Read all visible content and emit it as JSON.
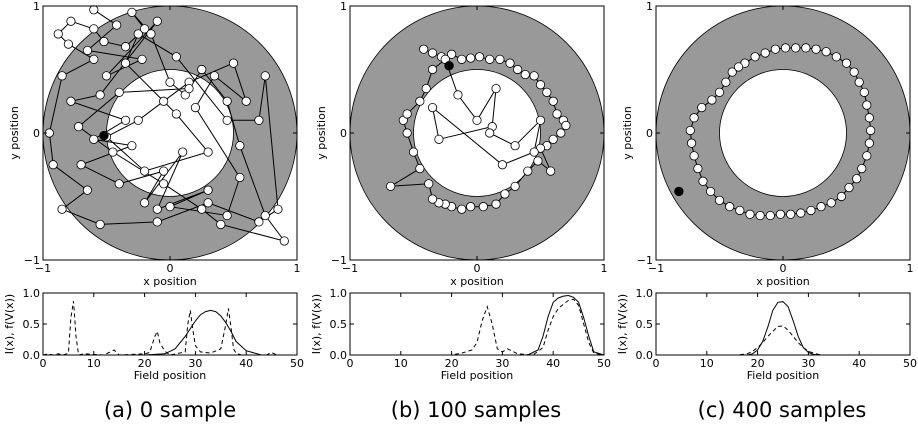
{
  "chart_data": [
    {
      "type": "scatter",
      "xlabel": "x position",
      "ylabel": "y position",
      "xlim": [
        -1,
        1
      ],
      "ylim": [
        -1,
        1
      ],
      "xticks": [
        "−1",
        "0",
        "1"
      ],
      "yticks": [
        "−1",
        "0",
        "1"
      ],
      "annulus": {
        "outer_radius": 1.0,
        "inner_radius": 0.5,
        "color": "#999999"
      },
      "path": [
        [
          -0.6,
          0.97
        ],
        [
          -0.42,
          0.85
        ],
        [
          -0.65,
          0.65
        ],
        [
          -0.22,
          0.58
        ],
        [
          -0.5,
          0.45
        ],
        [
          -0.1,
          0.88
        ],
        [
          -0.55,
          0.3
        ],
        [
          -0.78,
          0.25
        ],
        [
          -0.35,
          0.1
        ],
        [
          -0.6,
          -0.05
        ],
        [
          -0.3,
          -0.1
        ],
        [
          -0.7,
          -0.25
        ],
        [
          -0.4,
          -0.4
        ],
        [
          -0.05,
          -0.3
        ],
        [
          -0.2,
          -0.55
        ],
        [
          0.1,
          -0.15
        ],
        [
          -0.1,
          -0.6
        ],
        [
          0.3,
          -0.45
        ],
        [
          0.0,
          -0.58
        ],
        [
          0.45,
          -0.65
        ],
        [
          0.55,
          -0.35
        ],
        [
          0.2,
          0.2
        ],
        [
          0.35,
          0.45
        ],
        [
          0.6,
          0.25
        ],
        [
          0.5,
          0.55
        ],
        [
          0.15,
          0.4
        ],
        [
          -0.05,
          0.25
        ],
        [
          -0.25,
          0.1
        ],
        [
          -0.5,
          -0.03
        ],
        [
          -0.2,
          -0.3
        ],
        [
          0.3,
          -0.15
        ],
        [
          0.05,
          0.15
        ],
        [
          -0.35,
          0.55
        ],
        [
          -0.25,
          0.78
        ],
        [
          0.05,
          0.6
        ],
        [
          0.45,
          0.1
        ],
        [
          0.7,
          0.1
        ],
        [
          0.75,
          0.45
        ],
        [
          0.85,
          -0.6
        ],
        [
          0.7,
          -0.7
        ],
        [
          0.3,
          -0.55
        ],
        [
          -0.1,
          -0.7
        ],
        [
          -0.55,
          -0.72
        ],
        [
          -0.85,
          -0.6
        ],
        [
          -0.65,
          -0.45
        ],
        [
          -0.92,
          -0.25
        ],
        [
          -0.95,
          0.0
        ],
        [
          -0.85,
          0.45
        ],
        [
          -0.6,
          0.58
        ],
        [
          -0.8,
          0.7
        ],
        [
          -0.88,
          0.78
        ],
        [
          -0.78,
          0.88
        ],
        [
          -0.6,
          0.82
        ],
        [
          -0.52,
          0.72
        ],
        [
          -0.35,
          0.68
        ],
        [
          -0.2,
          0.82
        ],
        [
          -0.3,
          0.95
        ],
        [
          -0.15,
          0.78
        ],
        [
          0.0,
          0.4
        ],
        [
          0.12,
          0.3
        ],
        [
          0.25,
          0.5
        ],
        [
          0.45,
          0.25
        ],
        [
          0.55,
          -0.1
        ],
        [
          0.75,
          -0.65
        ],
        [
          0.9,
          -0.85
        ],
        [
          0.4,
          -0.72
        ],
        [
          0.25,
          -0.6
        ],
        [
          -0.05,
          -0.4
        ],
        [
          -0.45,
          -0.15
        ],
        [
          -0.72,
          0.05
        ],
        [
          -0.4,
          0.32
        ],
        [
          0.15,
          0.35
        ]
      ],
      "highlight": [
        -0.52,
        -0.02
      ]
    },
    {
      "type": "scatter",
      "xlabel": "x position",
      "ylabel": "y position",
      "xlim": [
        -1,
        1
      ],
      "ylim": [
        -1,
        1
      ],
      "xticks": [
        "−1",
        "0",
        "1"
      ],
      "yticks": [
        "−1",
        "0",
        "1"
      ],
      "annulus": {
        "outer_radius": 1.0,
        "inner_radius": 0.5,
        "color": "#999999"
      },
      "path": [
        [
          -0.42,
          0.66
        ],
        [
          -0.35,
          0.63
        ],
        [
          -0.28,
          0.6
        ],
        [
          -0.2,
          0.62
        ],
        [
          -0.12,
          0.58
        ],
        [
          -0.05,
          0.59
        ],
        [
          0.02,
          0.6
        ],
        [
          0.1,
          0.58
        ],
        [
          0.18,
          0.58
        ],
        [
          0.26,
          0.55
        ],
        [
          0.32,
          0.5
        ],
        [
          0.38,
          0.46
        ],
        [
          0.45,
          0.45
        ],
        [
          0.5,
          0.38
        ],
        [
          0.55,
          0.32
        ],
        [
          0.6,
          0.25
        ],
        [
          0.63,
          0.15
        ],
        [
          0.68,
          0.1
        ],
        [
          0.7,
          0.06
        ],
        [
          0.66,
          0.0
        ],
        [
          0.6,
          -0.05
        ],
        [
          0.55,
          -0.1
        ],
        [
          0.5,
          -0.12
        ],
        [
          0.58,
          -0.3
        ],
        [
          0.48,
          -0.22
        ],
        [
          0.4,
          -0.3
        ],
        [
          0.3,
          -0.42
        ],
        [
          0.22,
          -0.48
        ],
        [
          0.15,
          -0.56
        ],
        [
          0.05,
          -0.58
        ],
        [
          -0.05,
          -0.58
        ],
        [
          -0.12,
          -0.6
        ],
        [
          -0.2,
          -0.58
        ],
        [
          -0.25,
          -0.56
        ],
        [
          -0.3,
          -0.55
        ],
        [
          -0.35,
          -0.52
        ],
        [
          -0.38,
          -0.4
        ],
        [
          -0.68,
          -0.42
        ],
        [
          -0.45,
          -0.28
        ],
        [
          -0.5,
          -0.15
        ],
        [
          -0.55,
          0.0
        ],
        [
          -0.58,
          0.1
        ],
        [
          -0.55,
          0.15
        ],
        [
          -0.45,
          0.25
        ],
        [
          -0.4,
          0.35
        ],
        [
          -0.35,
          0.5
        ],
        [
          -0.25,
          0.58
        ],
        [
          -0.15,
          0.3
        ],
        [
          0.0,
          0.1
        ],
        [
          0.15,
          0.35
        ],
        [
          0.12,
          0.05
        ],
        [
          -0.3,
          -0.05
        ],
        [
          -0.35,
          0.2
        ],
        [
          0.2,
          -0.25
        ],
        [
          0.45,
          -0.15
        ],
        [
          0.5,
          0.1
        ],
        [
          0.3,
          -0.1
        ],
        [
          0.1,
          0.0
        ]
      ],
      "highlight": [
        -0.22,
        0.53
      ]
    },
    {
      "type": "scatter",
      "xlabel": "x position",
      "ylabel": "y position",
      "xlim": [
        -1,
        1
      ],
      "ylim": [
        -1,
        1
      ],
      "xticks": [
        "−1",
        "0",
        "1"
      ],
      "yticks": [
        "−1",
        "0",
        "1"
      ],
      "annulus": {
        "outer_radius": 1.0,
        "inner_radius": 0.5,
        "color": "#999999"
      },
      "path": [
        [
          -0.3,
          0.55
        ],
        [
          -0.22,
          0.6
        ],
        [
          -0.14,
          0.63
        ],
        [
          -0.06,
          0.66
        ],
        [
          0.02,
          0.67
        ],
        [
          0.1,
          0.67
        ],
        [
          0.18,
          0.67
        ],
        [
          0.26,
          0.66
        ],
        [
          0.34,
          0.64
        ],
        [
          0.42,
          0.6
        ],
        [
          0.5,
          0.55
        ],
        [
          0.56,
          0.48
        ],
        [
          0.6,
          0.4
        ],
        [
          0.64,
          0.32
        ],
        [
          0.66,
          0.22
        ],
        [
          0.68,
          0.12
        ],
        [
          0.69,
          0.02
        ],
        [
          0.68,
          -0.08
        ],
        [
          0.66,
          -0.18
        ],
        [
          0.62,
          -0.28
        ],
        [
          0.58,
          -0.36
        ],
        [
          0.52,
          -0.43
        ],
        [
          0.46,
          -0.5
        ],
        [
          0.38,
          -0.55
        ],
        [
          0.3,
          -0.58
        ],
        [
          0.22,
          -0.61
        ],
        [
          0.14,
          -0.63
        ],
        [
          0.06,
          -0.64
        ],
        [
          -0.02,
          -0.64
        ],
        [
          -0.1,
          -0.65
        ],
        [
          -0.18,
          -0.65
        ],
        [
          -0.26,
          -0.64
        ],
        [
          -0.34,
          -0.61
        ],
        [
          -0.42,
          -0.58
        ],
        [
          -0.5,
          -0.53
        ],
        [
          -0.57,
          -0.46
        ],
        [
          -0.63,
          -0.38
        ],
        [
          -0.67,
          -0.28
        ],
        [
          -0.7,
          -0.18
        ],
        [
          -0.72,
          -0.08
        ],
        [
          -0.73,
          0.02
        ],
        [
          -0.7,
          0.12
        ],
        [
          -0.64,
          0.2
        ],
        [
          -0.56,
          0.26
        ],
        [
          -0.5,
          0.32
        ],
        [
          -0.45,
          0.4
        ],
        [
          -0.4,
          0.48
        ],
        [
          -0.35,
          0.52
        ]
      ],
      "highlight": [
        -0.82,
        -0.46
      ]
    },
    {
      "type": "line",
      "xlabel": "Field position",
      "ylabel": "I(x), f(V(x))",
      "xlim": [
        0,
        50
      ],
      "ylim": [
        0,
        1
      ],
      "xticks": [
        "0",
        "10",
        "20",
        "30",
        "40",
        "50"
      ],
      "yticks": [
        "0.0",
        "0.5",
        "1.0"
      ],
      "series": [
        {
          "style": "solid",
          "x": [
            0,
            20,
            24,
            26,
            28,
            30,
            31,
            32,
            33,
            34,
            35,
            36,
            37,
            38,
            40,
            43,
            50
          ],
          "values": [
            0,
            0,
            0.02,
            0.1,
            0.3,
            0.55,
            0.65,
            0.7,
            0.72,
            0.7,
            0.63,
            0.52,
            0.38,
            0.22,
            0.07,
            0,
            0
          ]
        },
        {
          "style": "dashed",
          "x": [
            0,
            1,
            2,
            3,
            4,
            5,
            5.5,
            6,
            6.5,
            7,
            8,
            12,
            13,
            14,
            15,
            20,
            21,
            22,
            22.5,
            23,
            24,
            25,
            28,
            28.5,
            29,
            29.5,
            30,
            31,
            33,
            35,
            36,
            36.5,
            37,
            37.5,
            38,
            39,
            44,
            45,
            46,
            50
          ],
          "values": [
            0,
            0.02,
            0,
            0.02,
            0,
            0.03,
            0.6,
            0.87,
            0.3,
            0,
            0.02,
            0,
            0.04,
            0.08,
            0,
            0.02,
            0.04,
            0.3,
            0.38,
            0.2,
            0.06,
            0,
            0.05,
            0.5,
            0.72,
            0.4,
            0.15,
            0.05,
            0.03,
            0.1,
            0.5,
            0.75,
            0.45,
            0.1,
            0.03,
            0,
            0,
            0.04,
            0,
            0
          ]
        }
      ]
    },
    {
      "type": "line",
      "xlabel": "Field position",
      "ylabel": "I(x), f(V(x))",
      "xlim": [
        0,
        50
      ],
      "ylim": [
        0,
        1
      ],
      "xticks": [
        "0",
        "10",
        "20",
        "30",
        "40",
        "50"
      ],
      "yticks": [
        "0.0",
        "0.5",
        "1.0"
      ],
      "series": [
        {
          "style": "solid",
          "x": [
            0,
            35,
            37,
            38,
            39,
            40,
            41,
            42,
            43,
            44,
            45,
            46,
            47,
            48,
            50
          ],
          "values": [
            0,
            0,
            0.08,
            0.3,
            0.62,
            0.85,
            0.92,
            0.95,
            0.96,
            0.93,
            0.85,
            0.6,
            0.3,
            0.05,
            0
          ]
        },
        {
          "style": "dashed",
          "x": [
            0,
            20,
            22,
            24,
            25,
            26,
            27,
            28,
            29,
            30,
            31,
            32,
            33,
            36,
            38,
            39,
            40,
            41,
            42,
            43,
            44,
            45,
            46,
            47,
            48,
            50
          ],
          "values": [
            0,
            0,
            0.03,
            0.08,
            0.2,
            0.55,
            0.78,
            0.5,
            0.1,
            0.05,
            0.1,
            0.06,
            0.02,
            0,
            0.12,
            0.4,
            0.62,
            0.75,
            0.82,
            0.88,
            0.9,
            0.8,
            0.5,
            0.2,
            0.03,
            0
          ]
        }
      ]
    },
    {
      "type": "line",
      "xlabel": "Field position",
      "ylabel": "I(x), f(V(x))",
      "xlim": [
        0,
        50
      ],
      "ylim": [
        0,
        1
      ],
      "xticks": [
        "0",
        "10",
        "20",
        "30",
        "40",
        "50"
      ],
      "yticks": [
        "0.0",
        "0.5",
        "1.0"
      ],
      "series": [
        {
          "style": "solid",
          "x": [
            0,
            18,
            19,
            20,
            21,
            22,
            23,
            24,
            25,
            26,
            27,
            28,
            29,
            30,
            31,
            32,
            50
          ],
          "values": [
            0,
            0,
            0.02,
            0.08,
            0.22,
            0.45,
            0.72,
            0.85,
            0.86,
            0.78,
            0.55,
            0.3,
            0.12,
            0.04,
            0.01,
            0,
            0
          ]
        },
        {
          "style": "dashed",
          "x": [
            0,
            16,
            18,
            19,
            20,
            21,
            22,
            23,
            24,
            25,
            26,
            27,
            28,
            29,
            30,
            31,
            32,
            33,
            34,
            50
          ],
          "values": [
            0,
            0,
            0.02,
            0.06,
            0.12,
            0.2,
            0.3,
            0.38,
            0.46,
            0.47,
            0.4,
            0.3,
            0.2,
            0.12,
            0.06,
            0.03,
            0.01,
            0,
            0,
            0
          ]
        }
      ]
    }
  ],
  "captions": [
    "(a) 0 sample",
    "(b) 100 samples",
    "(c) 400 samples"
  ]
}
